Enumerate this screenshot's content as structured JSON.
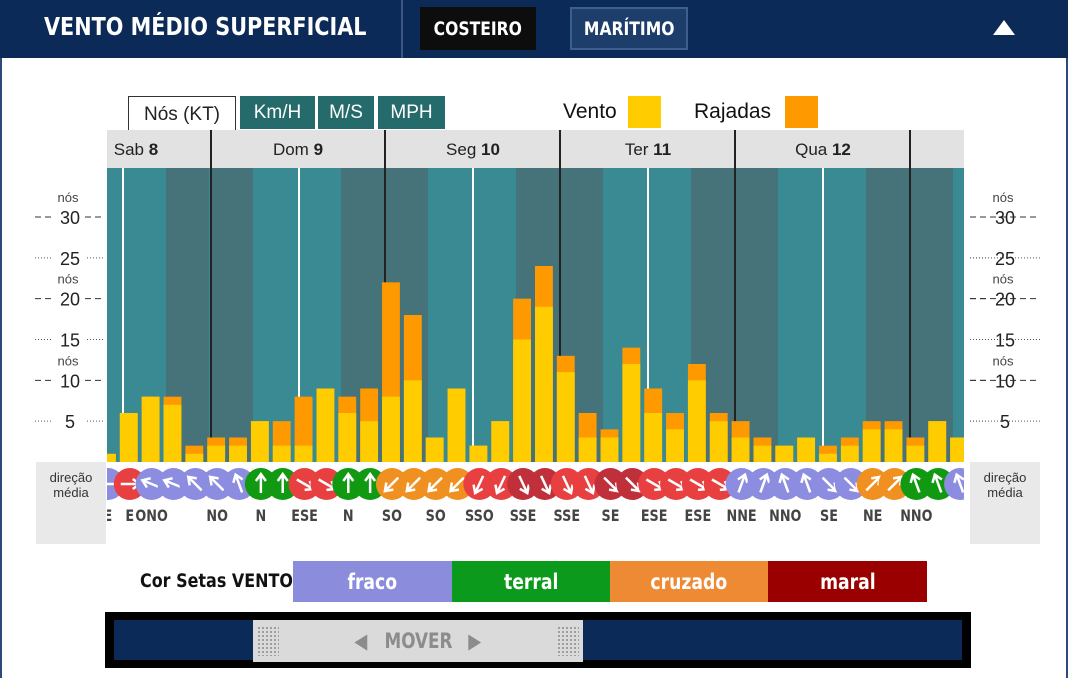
{
  "header": {
    "title": "VENTO MÉDIO SUPERFICIAL",
    "tabs": [
      {
        "label": "COSTEIRO",
        "active": true
      },
      {
        "label": "MARÍTIMO",
        "active": false
      }
    ],
    "collapse_icon": "triangle-up-icon"
  },
  "units": {
    "tabs": [
      "Nós (KT)",
      "Km/H",
      "M/S",
      "MPH"
    ],
    "selected": "Nós (KT)"
  },
  "legend": {
    "wind_label": "Vento",
    "gust_label": "Rajadas",
    "wind_color": "#ffcc00",
    "gust_color": "#ff9900"
  },
  "axis": {
    "unit_label": "nós",
    "major_ticks": [
      10,
      20,
      30
    ],
    "minor_ticks": [
      5,
      15,
      25
    ],
    "ylim": [
      0,
      36
    ]
  },
  "direction_label": "direção média",
  "days": [
    {
      "name": "Sab",
      "num": "8"
    },
    {
      "name": "Dom",
      "num": "9"
    },
    {
      "name": "Seg",
      "num": "10"
    },
    {
      "name": "Ter",
      "num": "11"
    },
    {
      "name": "Qua",
      "num": "12"
    }
  ],
  "chart_data": {
    "type": "bar",
    "ylabel": "nós",
    "ylim": [
      0,
      36
    ],
    "series": [
      {
        "name": "Vento"
      },
      {
        "name": "Rajadas"
      }
    ],
    "slots": [
      {
        "wind": 1,
        "gust": 1,
        "dir": "E",
        "color": "#8c8ce0",
        "arrow": 90
      },
      {
        "wind": 6,
        "gust": 6,
        "dir": "E",
        "color": "#e84040",
        "arrow": 270
      },
      {
        "wind": 8,
        "gust": 8,
        "dir": "ONO",
        "color": "#8c8ce0",
        "arrow": 112
      },
      {
        "wind": 7,
        "gust": 8,
        "dir": "",
        "color": "#8c8ce0",
        "arrow": 112
      },
      {
        "wind": 1,
        "gust": 2,
        "dir": "",
        "color": "#8c8ce0",
        "arrow": 135
      },
      {
        "wind": 2,
        "gust": 3,
        "dir": "NO",
        "color": "#8c8ce0",
        "arrow": 135
      },
      {
        "wind": 2,
        "gust": 3,
        "dir": "",
        "color": "#8c8ce0",
        "arrow": 160
      },
      {
        "wind": 5,
        "gust": 5,
        "dir": "N",
        "color": "#119911",
        "arrow": 180
      },
      {
        "wind": 2,
        "gust": 5,
        "dir": "",
        "color": "#119911",
        "arrow": 180
      },
      {
        "wind": 2,
        "gust": 8,
        "dir": "ESE",
        "color": "#e84040",
        "arrow": 300
      },
      {
        "wind": 9,
        "gust": 9,
        "dir": "",
        "color": "#e84040",
        "arrow": 300
      },
      {
        "wind": 6,
        "gust": 8,
        "dir": "N",
        "color": "#119911",
        "arrow": 180
      },
      {
        "wind": 5,
        "gust": 9,
        "dir": "",
        "color": "#119911",
        "arrow": 180
      },
      {
        "wind": 8,
        "gust": 22,
        "dir": "SO",
        "color": "#f09020",
        "arrow": 45
      },
      {
        "wind": 10,
        "gust": 18,
        "dir": "",
        "color": "#f09020",
        "arrow": 45
      },
      {
        "wind": 3,
        "gust": 3,
        "dir": "SO",
        "color": "#f09020",
        "arrow": 45
      },
      {
        "wind": 9,
        "gust": 9,
        "dir": "",
        "color": "#f09020",
        "arrow": 45
      },
      {
        "wind": 2,
        "gust": 2,
        "dir": "SSO",
        "color": "#e84040",
        "arrow": 25
      },
      {
        "wind": 5,
        "gust": 5,
        "dir": "",
        "color": "#e84040",
        "arrow": 25
      },
      {
        "wind": 15,
        "gust": 20,
        "dir": "SSE",
        "color": "#c0303a",
        "arrow": 335
      },
      {
        "wind": 19,
        "gust": 24,
        "dir": "",
        "color": "#c0303a",
        "arrow": 335
      },
      {
        "wind": 11,
        "gust": 13,
        "dir": "SSE",
        "color": "#e84040",
        "arrow": 335
      },
      {
        "wind": 3,
        "gust": 6,
        "dir": "",
        "color": "#e84040",
        "arrow": 335
      },
      {
        "wind": 3,
        "gust": 4,
        "dir": "SE",
        "color": "#c0303a",
        "arrow": 315
      },
      {
        "wind": 12,
        "gust": 14,
        "dir": "",
        "color": "#c0303a",
        "arrow": 315
      },
      {
        "wind": 6,
        "gust": 9,
        "dir": "ESE",
        "color": "#e84040",
        "arrow": 300
      },
      {
        "wind": 4,
        "gust": 6,
        "dir": "",
        "color": "#e84040",
        "arrow": 300
      },
      {
        "wind": 10,
        "gust": 12,
        "dir": "ESE",
        "color": "#e84040",
        "arrow": 300
      },
      {
        "wind": 5,
        "gust": 6,
        "dir": "",
        "color": "#e84040",
        "arrow": 300
      },
      {
        "wind": 3,
        "gust": 5,
        "dir": "NNE",
        "color": "#8c8ce0",
        "arrow": 200
      },
      {
        "wind": 2,
        "gust": 3,
        "dir": "",
        "color": "#8c8ce0",
        "arrow": 200
      },
      {
        "wind": 2,
        "gust": 2,
        "dir": "NNO",
        "color": "#8c8ce0",
        "arrow": 160
      },
      {
        "wind": 3,
        "gust": 3,
        "dir": "",
        "color": "#8c8ce0",
        "arrow": 160
      },
      {
        "wind": 1,
        "gust": 2,
        "dir": "SE",
        "color": "#8c8ce0",
        "arrow": 315
      },
      {
        "wind": 2,
        "gust": 3,
        "dir": "",
        "color": "#8c8ce0",
        "arrow": 315
      },
      {
        "wind": 4,
        "gust": 5,
        "dir": "NE",
        "color": "#f09020",
        "arrow": 225
      },
      {
        "wind": 4,
        "gust": 5,
        "dir": "",
        "color": "#f09020",
        "arrow": 225
      },
      {
        "wind": 2,
        "gust": 3,
        "dir": "NNO",
        "color": "#119911",
        "arrow": 160
      },
      {
        "wind": 5,
        "gust": 5,
        "dir": "",
        "color": "#119911",
        "arrow": 160
      },
      {
        "wind": 3,
        "gust": 3,
        "dir": "",
        "color": "#8c8ce0",
        "arrow": 160
      }
    ]
  },
  "color_scale": {
    "label": "Cor Setas VENTO:",
    "items": [
      {
        "label": "fraco",
        "color": "#8c8cdc"
      },
      {
        "label": "terral",
        "color": "#0b9a1b"
      },
      {
        "label": "cruzado",
        "color": "#ee8a33"
      },
      {
        "label": "maral",
        "color": "#9b0000"
      }
    ]
  },
  "mover": {
    "label": "MOVER",
    "left_icon": "triangle-left-icon",
    "right_icon": "triangle-right-icon"
  }
}
